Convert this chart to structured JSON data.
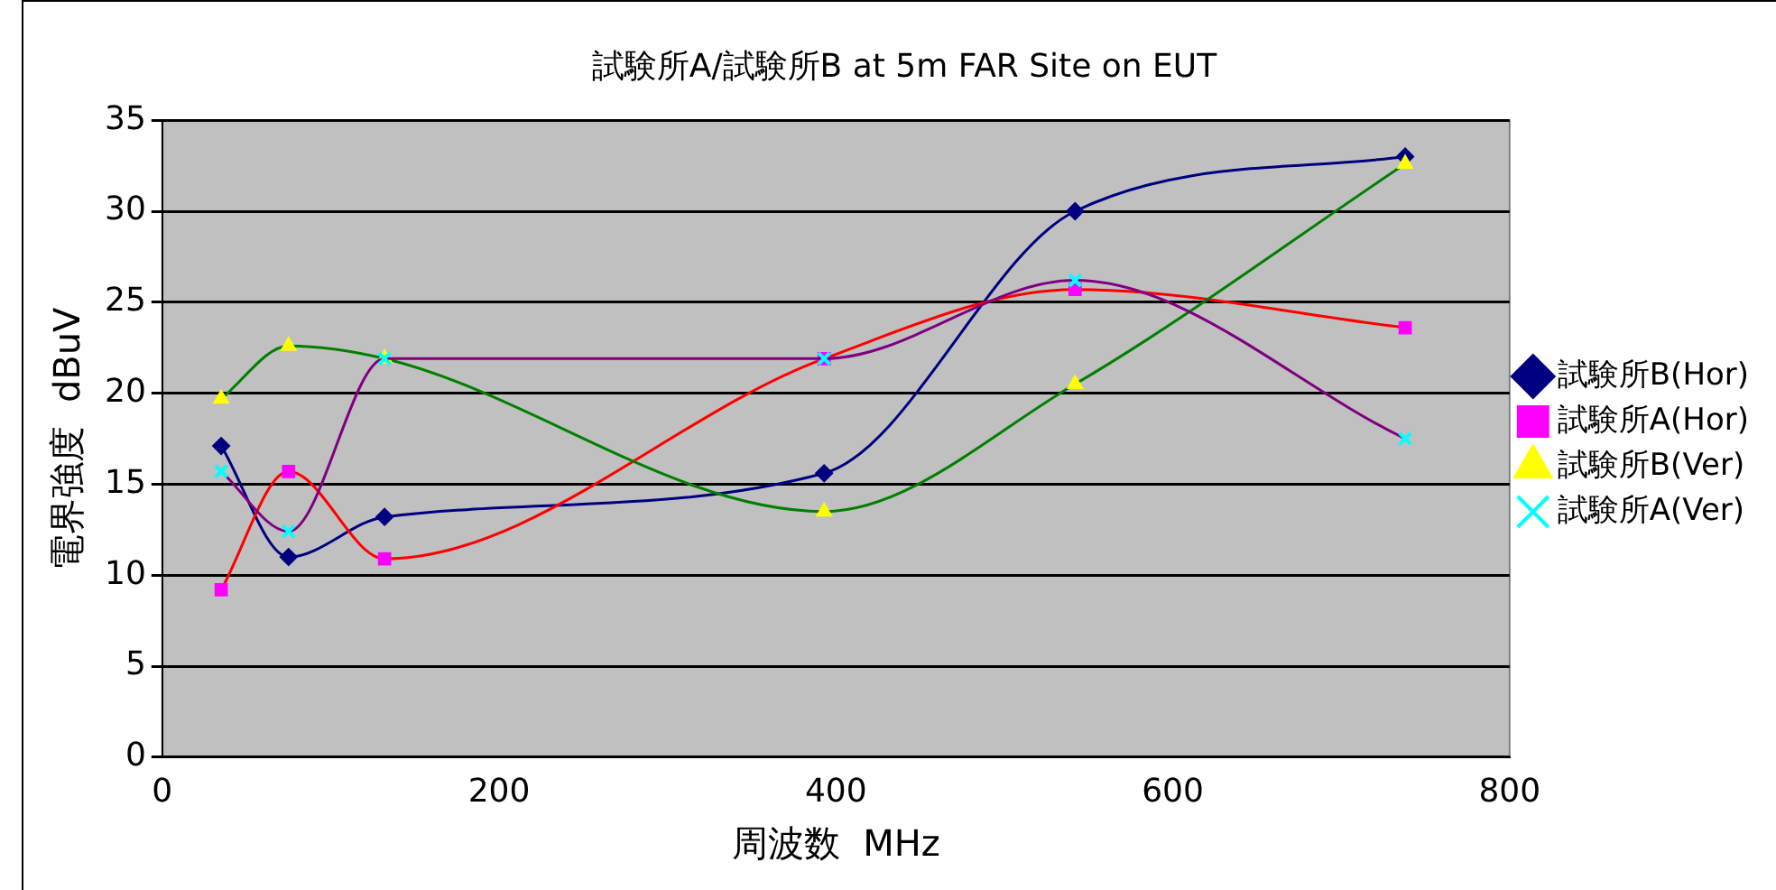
{
  "chart_data": {
    "type": "line",
    "title": "試験所A/試験所B at 5m FAR Site on EUT",
    "xlabel": "周波数  MHz",
    "ylabel": "電界強度  dBuV",
    "xlim": [
      0,
      800
    ],
    "xticks": [
      0,
      200,
      400,
      600,
      800
    ],
    "ylim": [
      0,
      35
    ],
    "yticks": [
      0,
      5,
      10,
      15,
      20,
      25,
      30,
      35
    ],
    "grid": "y",
    "legend": "right",
    "series": [
      {
        "name": "試験所B(Hor)",
        "color": "#000080",
        "colors": [
          "#000080",
          "#000080",
          "#000080",
          "#000080",
          "#000080",
          "#000080"
        ],
        "marker": "diamond",
        "x": [
          35,
          75,
          132,
          393,
          542,
          738
        ],
        "values": [
          17.1,
          11.0,
          13.2,
          15.6,
          30.0,
          33.0
        ]
      },
      {
        "name": "試験所A(Hor)",
        "color": "#ff0000",
        "colors": [
          "#ff00ff",
          "#ff00ff",
          "#ff00ff",
          "#ff00ff",
          "#ff00ff",
          "#ff00ff"
        ],
        "marker": "square",
        "x": [
          35,
          75,
          132,
          393,
          542,
          738
        ],
        "values": [
          9.2,
          15.7,
          10.9,
          21.9,
          25.7,
          23.6
        ]
      },
      {
        "name": "試験所B(Ver)",
        "color": "#008000",
        "colors": [
          "#ffff00",
          "#ffff00",
          "#ffff00",
          "#ffff00",
          "#ffff00",
          "#ffff00"
        ],
        "marker": "triangle",
        "x": [
          35,
          75,
          132,
          393,
          542,
          738
        ],
        "values": [
          19.7,
          22.6,
          21.9,
          13.5,
          20.5,
          32.6
        ]
      },
      {
        "name": "試験所A(Ver)",
        "color": "#800080",
        "colors": [
          "#00ffff",
          "#00ffff",
          "#00ffff",
          "#00ffff",
          "#00ffff",
          "#00ffff"
        ],
        "marker": "cross",
        "x": [
          35,
          75,
          132,
          393,
          542,
          738
        ],
        "values": [
          15.7,
          12.4,
          21.9,
          21.9,
          26.2,
          17.5
        ]
      }
    ]
  }
}
